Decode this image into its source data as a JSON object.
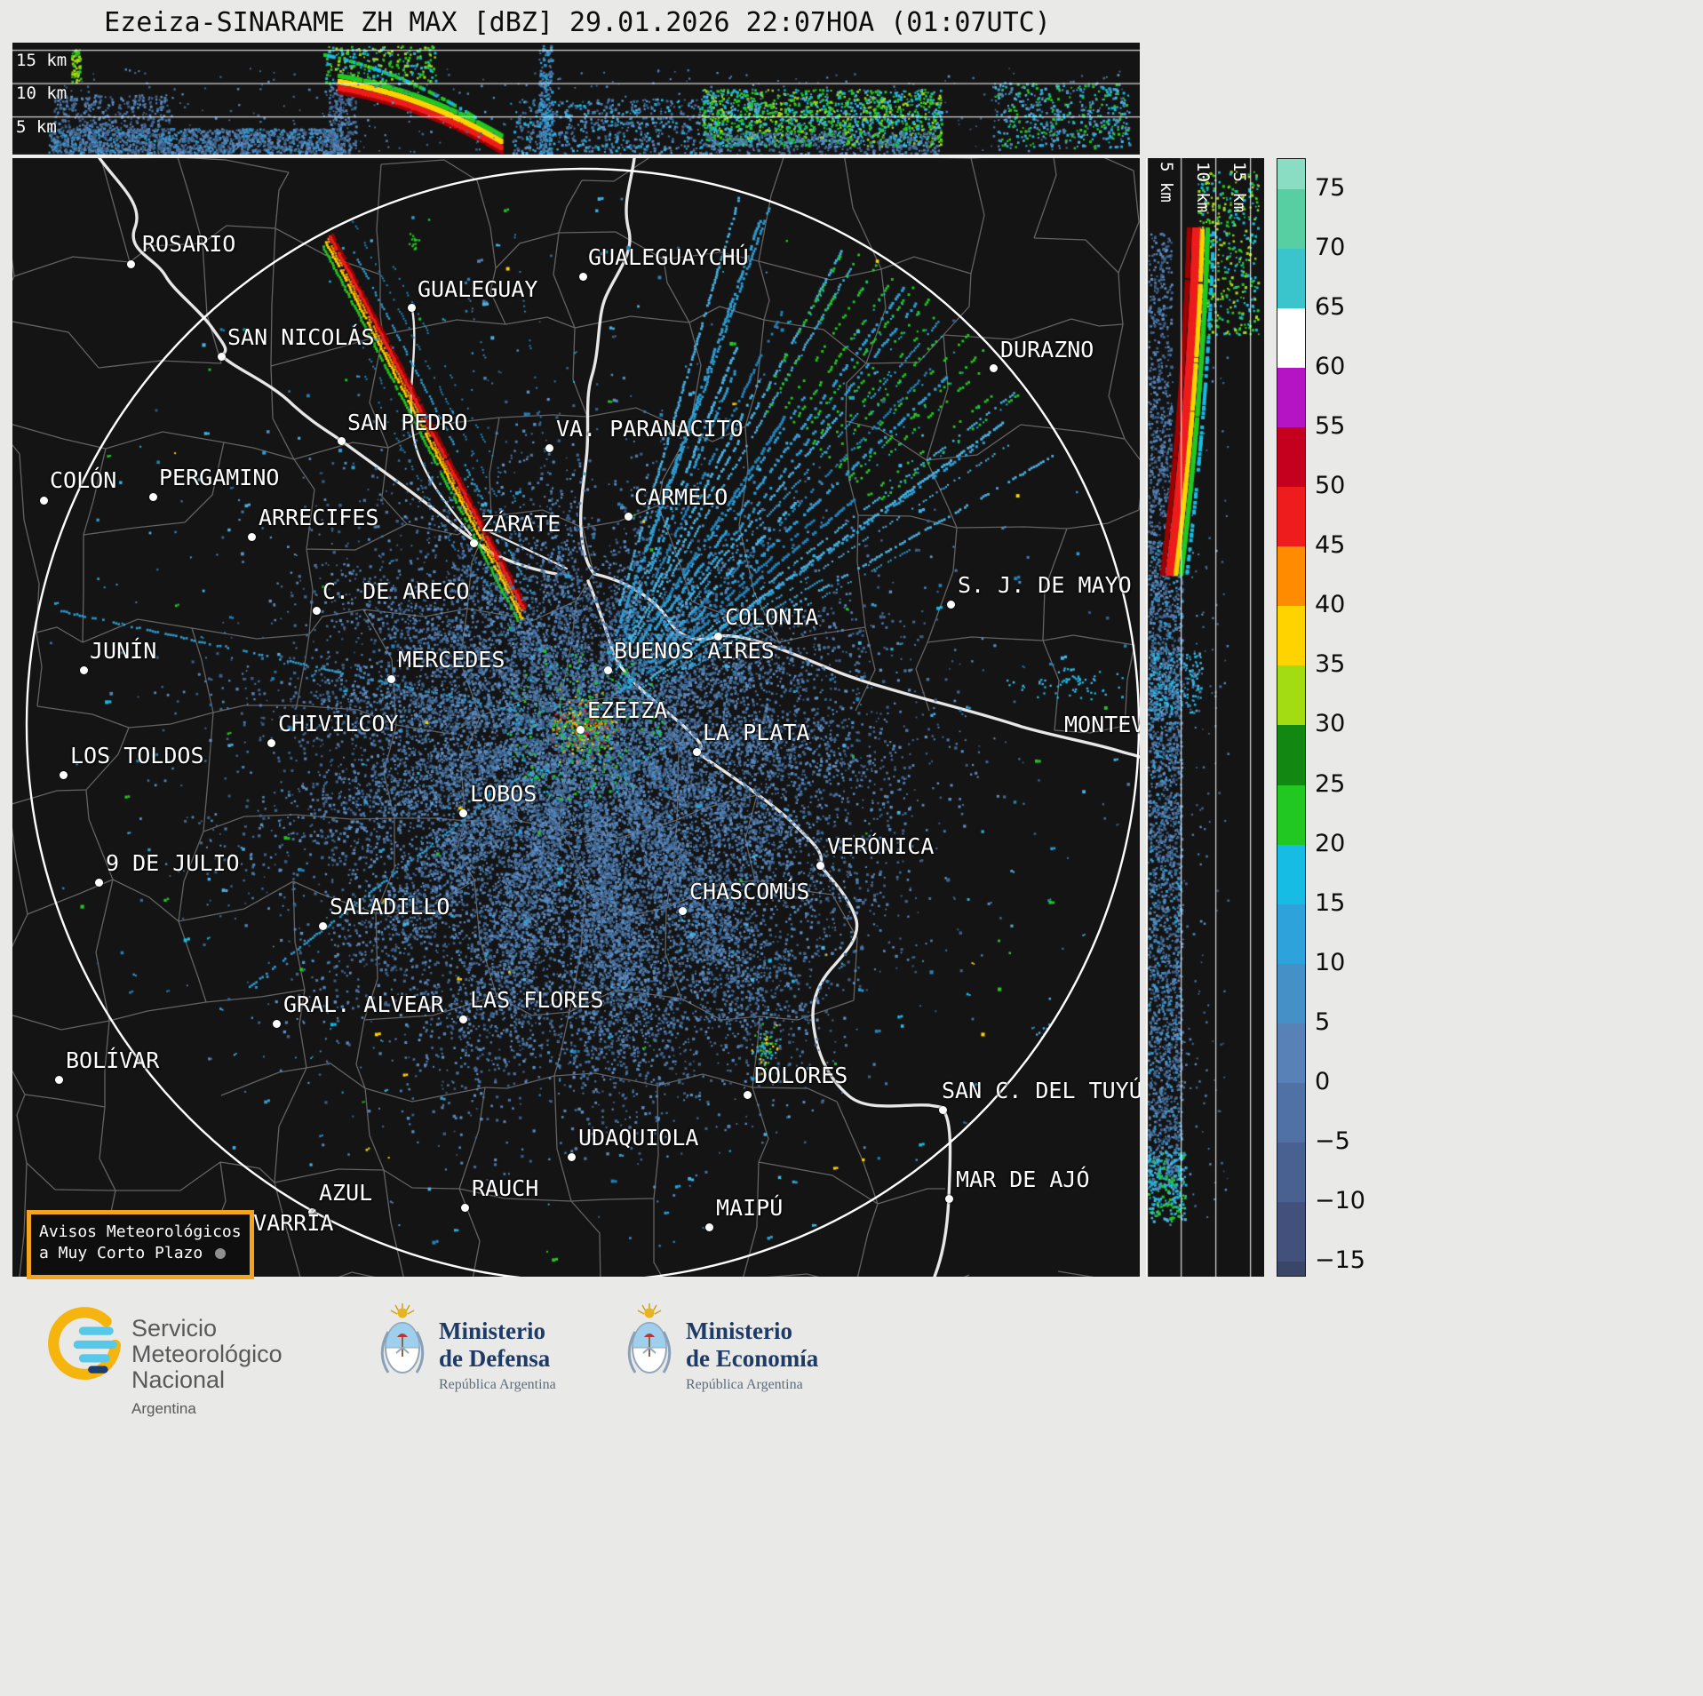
{
  "title": "Ezeiza-SINARAME ZH MAX [dBZ] 29.01.2026 22:07HOA (01:07UTC)",
  "cross_sections": {
    "top": {
      "height_labels": [
        "15 km",
        "10 km",
        "5 km"
      ]
    },
    "right": {
      "height_labels": [
        "5 km",
        "10 km",
        "15 km"
      ]
    }
  },
  "colorbar": {
    "tick_labels": [
      "75",
      "70",
      "65",
      "60",
      "55",
      "50",
      "45",
      "40",
      "35",
      "30",
      "25",
      "20",
      "15",
      "10",
      "5",
      "0",
      "−5",
      "−10",
      "−15"
    ],
    "tick_values": [
      75,
      70,
      65,
      60,
      55,
      50,
      45,
      40,
      35,
      30,
      25,
      20,
      15,
      10,
      5,
      0,
      -5,
      -10,
      -15
    ],
    "stops": [
      {
        "from": 75,
        "color": "#8adcc2"
      },
      {
        "from": 70,
        "color": "#58cfa2"
      },
      {
        "from": 65,
        "color": "#3ac4cc"
      },
      {
        "from": 60,
        "color": "#ffffff"
      },
      {
        "from": 55,
        "color": "#b414c4"
      },
      {
        "from": 50,
        "color": "#c4001e"
      },
      {
        "from": 45,
        "color": "#ee1c1c"
      },
      {
        "from": 40,
        "color": "#ff8c00"
      },
      {
        "from": 35,
        "color": "#ffd300"
      },
      {
        "from": 30,
        "color": "#a4dc14"
      },
      {
        "from": 25,
        "color": "#128812"
      },
      {
        "from": 20,
        "color": "#22c822"
      },
      {
        "from": 15,
        "color": "#16bce4"
      },
      {
        "from": 10,
        "color": "#2ea2da"
      },
      {
        "from": 5,
        "color": "#4690c8"
      },
      {
        "from": 0,
        "color": "#5881b8"
      },
      {
        "from": -5,
        "color": "#5071a4"
      },
      {
        "from": -10,
        "color": "#486190"
      },
      {
        "from": -15,
        "color": "#41517c"
      },
      {
        "from": -20,
        "color": "#3a4668"
      }
    ]
  },
  "map": {
    "cities": [
      {
        "name": "ROSARIO",
        "dot": [
          133,
          119
        ],
        "label": [
          146,
          84
        ]
      },
      {
        "name": "GUALEGUAYCHÚ",
        "dot": [
          642,
          133
        ],
        "label": [
          648,
          99
        ]
      },
      {
        "name": "GUALEGUAY",
        "dot": [
          449,
          168
        ],
        "label": [
          456,
          135
        ]
      },
      {
        "name": "SAN NICOLÁS",
        "dot": [
          235,
          223
        ],
        "label": [
          242,
          189
        ]
      },
      {
        "name": "DURAZNO",
        "dot": [
          1104,
          236
        ],
        "label": [
          1112,
          203
        ]
      },
      {
        "name": "SAN PEDRO",
        "dot": [
          370,
          318
        ],
        "label": [
          377,
          285
        ]
      },
      {
        "name": "VA. PARANACITO",
        "dot": [
          604,
          326
        ],
        "label": [
          612,
          292
        ]
      },
      {
        "name": "COLÓN",
        "dot": [
          35,
          385
        ],
        "label": [
          42,
          350
        ]
      },
      {
        "name": "PERGAMINO",
        "dot": [
          158,
          381
        ],
        "label": [
          165,
          347
        ]
      },
      {
        "name": "ARRECIFES",
        "dot": [
          269,
          426
        ],
        "label": [
          277,
          392
        ]
      },
      {
        "name": "CARMELO",
        "dot": [
          693,
          403
        ],
        "label": [
          700,
          369
        ]
      },
      {
        "name": "ZÁRATE",
        "dot": [
          519,
          433
        ],
        "label": [
          527,
          399
        ]
      },
      {
        "name": "C. DE ARECO",
        "dot": [
          342,
          509
        ],
        "label": [
          349,
          475
        ]
      },
      {
        "name": "S. J. DE MAYO",
        "dot": [
          1056,
          502
        ],
        "label": [
          1064,
          468
        ]
      },
      {
        "name": "COLONIA",
        "dot": [
          794,
          538
        ],
        "label": [
          802,
          504
        ]
      },
      {
        "name": "JUNÍN",
        "dot": [
          80,
          576
        ],
        "label": [
          87,
          542
        ]
      },
      {
        "name": "MERCEDES",
        "dot": [
          426,
          586
        ],
        "label": [
          434,
          552
        ]
      },
      {
        "name": "BUENOS AIRES",
        "dot": [
          670,
          576
        ],
        "label": [
          677,
          542
        ]
      },
      {
        "name": "EZEIZA",
        "dot": [
          639,
          643
        ],
        "label": [
          647,
          609
        ]
      },
      {
        "name": "CHIVILCOY",
        "dot": [
          291,
          658
        ],
        "label": [
          299,
          624
        ]
      },
      {
        "name": "LA PLATA",
        "dot": [
          770,
          668
        ],
        "label": [
          777,
          634
        ]
      },
      {
        "name": "MONTEVIDEO",
        "dot": [
          1283,
          668
        ],
        "label": [
          1184,
          625
        ]
      },
      {
        "name": "LOS TOLDOS",
        "dot": [
          57,
          694
        ],
        "label": [
          65,
          660
        ]
      },
      {
        "name": "LOBOS",
        "dot": [
          507,
          737
        ],
        "label": [
          515,
          703
        ]
      },
      {
        "name": "VERÓNICA",
        "dot": [
          909,
          796
        ],
        "label": [
          917,
          762
        ]
      },
      {
        "name": "9 DE JULIO",
        "dot": [
          97,
          815
        ],
        "label": [
          105,
          781
        ]
      },
      {
        "name": "CHASCOMÚS",
        "dot": [
          754,
          847
        ],
        "label": [
          762,
          813
        ]
      },
      {
        "name": "SALADILLO",
        "dot": [
          349,
          864
        ],
        "label": [
          357,
          830
        ]
      },
      {
        "name": "GRAL. ALVEAR",
        "dot": [
          297,
          974
        ],
        "label": [
          305,
          940
        ]
      },
      {
        "name": "LAS FLORES",
        "dot": [
          507,
          969
        ],
        "label": [
          515,
          935
        ]
      },
      {
        "name": "BOLÍVAR",
        "dot": [
          52,
          1037
        ],
        "label": [
          60,
          1003
        ]
      },
      {
        "name": "DOLORES",
        "dot": [
          827,
          1054
        ],
        "label": [
          835,
          1020
        ]
      },
      {
        "name": "SAN C. DEL TUYÚ",
        "dot": [
          1047,
          1071
        ],
        "label": [
          1046,
          1037
        ]
      },
      {
        "name": "UDAQUIOLA",
        "dot": [
          629,
          1124
        ],
        "label": [
          637,
          1090
        ]
      },
      {
        "name": "MAR DE AJÓ",
        "dot": [
          1054,
          1171
        ],
        "label": [
          1062,
          1137
        ]
      },
      {
        "name": "AZUL",
        "dot": [
          337,
          1186
        ],
        "label": [
          345,
          1152
        ]
      },
      {
        "name": "RAUCH",
        "dot": [
          509,
          1181
        ],
        "label": [
          517,
          1147
        ]
      },
      {
        "name": "MAIPÚ",
        "dot": [
          784,
          1203
        ],
        "label": [
          792,
          1169
        ]
      },
      {
        "name": "OLAVARRÍA",
        "dot": [
          211,
          1222
        ],
        "label": [
          226,
          1186
        ]
      }
    ]
  },
  "warning_box": {
    "line1": "Avisos Meteorológicos",
    "line2": "a Muy Corto Plazo"
  },
  "footer": {
    "smn": {
      "name_lines": [
        "Servicio",
        "Meteorológico",
        "Nacional"
      ],
      "country": "Argentina"
    },
    "ministries": [
      {
        "line1": "Ministerio",
        "line2": "de Defensa",
        "sub": "República Argentina"
      },
      {
        "line1": "Ministerio",
        "line2": "de Economía",
        "sub": "República Argentina"
      }
    ]
  },
  "palette": {
    "panel_background": "#141414",
    "range_ring": "#ffffff",
    "boundary": "#7d7d7d",
    "water_line": "#f2f2f2",
    "warning_border": "#f2a41f",
    "mass_blues": [
      "#41668e",
      "#4b76a6",
      "#5684b8",
      "#3a5f88",
      "#6090c6"
    ],
    "spike_blues": [
      "#2f9fd6",
      "#49b4e6",
      "#2284bc"
    ],
    "cyan": "#16bce4",
    "green": "#22c822",
    "dark_green": "#128812",
    "chartreuse": "#a4dc14",
    "yellow": "#ffd300",
    "orange": "#ff8c00",
    "red": "#ee1c1c",
    "dark_red": "#a00000",
    "magenta": "#c018d0"
  }
}
